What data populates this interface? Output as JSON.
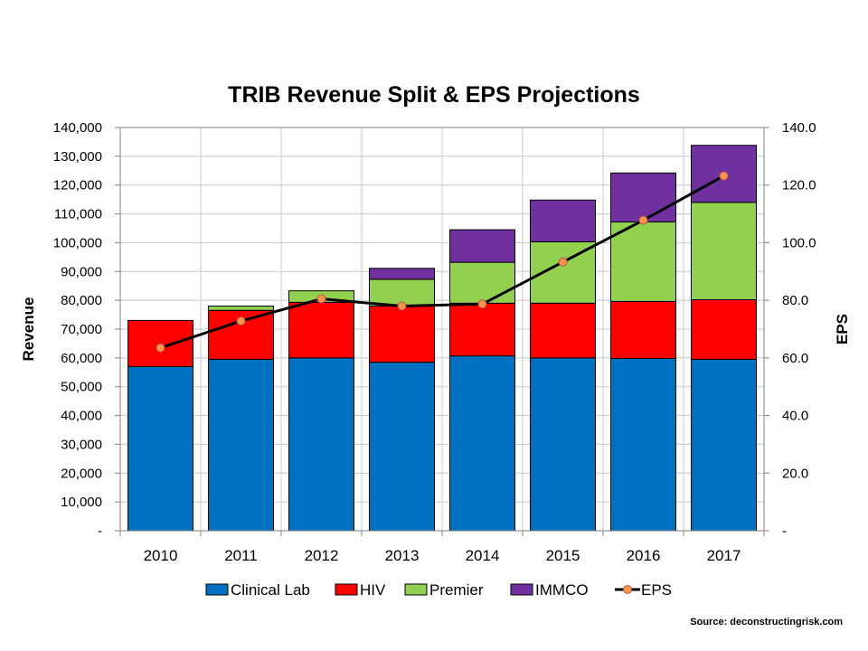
{
  "chart_data": {
    "type": "bar",
    "title": "TRIB Revenue Split & EPS Projections",
    "xlabel": "",
    "ylabel": "Revenue",
    "y2label": "EPS",
    "ylim": [
      0,
      140000
    ],
    "y2lim": [
      0,
      140
    ],
    "yticks": [
      "-",
      "10,000",
      "20,000",
      "30,000",
      "40,000",
      "50,000",
      "60,000",
      "70,000",
      "80,000",
      "90,000",
      "100,000",
      "110,000",
      "120,000",
      "130,000",
      "140,000"
    ],
    "y2ticks": [
      "-",
      "20.0",
      "40.0",
      "60.0",
      "80.0",
      "100.0",
      "120.0",
      "140.0"
    ],
    "categories": [
      "2010",
      "2011",
      "2012",
      "2013",
      "2014",
      "2015",
      "2016",
      "2017"
    ],
    "series": [
      {
        "name": "Clinical Lab",
        "kind": "bar",
        "color": "#0070C0",
        "values": [
          57000,
          59500,
          60000,
          58500,
          60700,
          60000,
          59800,
          59500
        ]
      },
      {
        "name": "HIV",
        "kind": "bar",
        "color": "#FF0000",
        "values": [
          16000,
          17000,
          19300,
          19500,
          18300,
          19000,
          19800,
          20700
        ]
      },
      {
        "name": "Premier",
        "kind": "bar",
        "color": "#92D050",
        "values": [
          0,
          1500,
          4000,
          9300,
          14200,
          21300,
          27600,
          33800
        ]
      },
      {
        "name": "IMMCO",
        "kind": "bar",
        "color": "#7030A0",
        "values": [
          0,
          0,
          0,
          3800,
          11300,
          14500,
          17000,
          19800
        ]
      },
      {
        "name": "EPS",
        "kind": "line",
        "axis": "y2",
        "color": "#000000",
        "marker_color": "#F79646",
        "values": [
          63.5,
          72.8,
          80.5,
          78.0,
          78.7,
          93.3,
          107.8,
          123.2
        ]
      }
    ],
    "legend_position": "bottom",
    "grid": true
  },
  "source_text": "Source: deconstructingrisk.com"
}
